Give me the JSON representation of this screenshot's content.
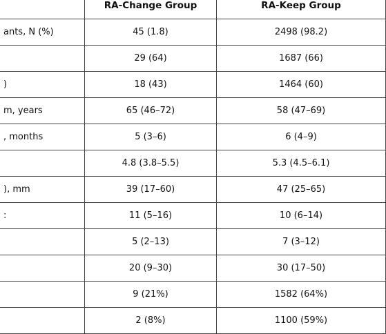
{
  "table": {
    "header": [
      "RA-Change Group",
      "RA-Keep Group"
    ],
    "rows": [
      {
        "label": "ants, N (%)",
        "cells": [
          "45 (1.8)",
          "2498 (98.2)"
        ]
      },
      {
        "cells": [
          "29 (64)",
          "1687 (66)"
        ]
      },
      {
        "label": ")",
        "cells": [
          "18 (43)",
          "1464 (60)"
        ]
      },
      {
        "label": "m, years",
        "cells": [
          "65 (46–72)",
          "58 (47–69)"
        ]
      },
      {
        "label": ", months",
        "cells": [
          "5 (3–6)",
          "6 (4–9)"
        ]
      },
      {
        "cells": [
          "4.8 (3.8–5.5)",
          "5.3 (4.5–6.1)"
        ]
      },
      {
        "label": "), mm",
        "cells": [
          "39 (17–60)",
          "47 (25–65)"
        ]
      },
      {
        "label": ":",
        "cells": [
          "11 (5–16)",
          "10 (6–14)"
        ]
      },
      {
        "cells": [
          "5 (2–13)",
          "7 (3–12)"
        ]
      },
      {
        "cells": [
          "20 (9–30)",
          "30 (17–50)"
        ]
      },
      {
        "cells": [
          "9 (21%)",
          "1582 (64%)"
        ]
      },
      {
        "cells": [
          "2 (8%)",
          "1100 (59%)"
        ]
      }
    ]
  }
}
